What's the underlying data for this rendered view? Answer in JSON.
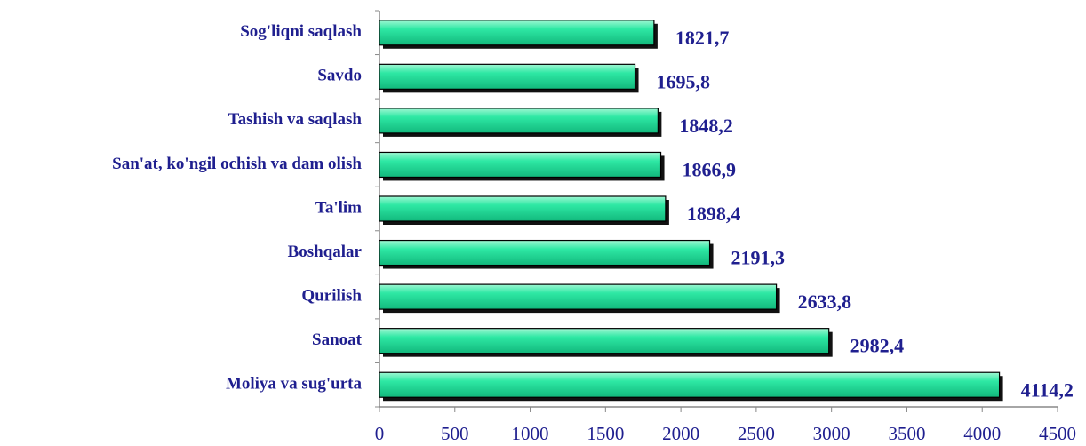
{
  "chart_data": {
    "type": "hbar",
    "categories": [
      "Sog'liqni saqlash",
      "Savdo",
      "Tashish va saqlash",
      "San'at, ko'ngil ochish va dam olish",
      "Ta'lim",
      "Boshqalar",
      "Qurilish",
      "Sanoat",
      "Moliya va sug'urta"
    ],
    "values": [
      1821.7,
      1695.8,
      1848.2,
      1866.9,
      1898.4,
      2191.3,
      2633.8,
      2982.4,
      4114.2
    ],
    "value_labels": [
      "1821,7",
      "1695,8",
      "1848,2",
      "1866,9",
      "1898,4",
      "2191,3",
      "2633,8",
      "2982,4",
      "4114,2"
    ],
    "color": "#2ee8a4",
    "xlim": [
      0,
      4500
    ],
    "xticks": [
      0,
      500,
      1000,
      1500,
      2000,
      2500,
      3000,
      3500,
      4000,
      4500
    ]
  }
}
